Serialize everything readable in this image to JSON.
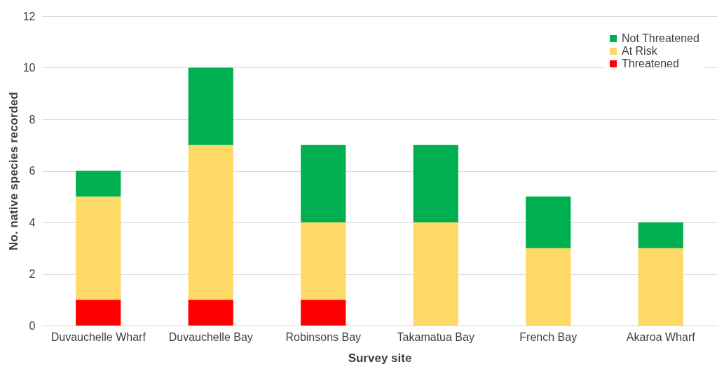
{
  "chart_data": {
    "type": "bar",
    "stacked": true,
    "xlabel": "Survey site",
    "ylabel": "No. native species recorded",
    "categories": [
      "Duvauchelle Wharf",
      "Duvauchelle Bay",
      "Robinsons Bay",
      "Takamatua Bay",
      "French Bay",
      "Akaroa Wharf"
    ],
    "series": [
      {
        "name": "Threatened",
        "color": "#ff0000",
        "values": [
          1,
          1,
          1,
          0,
          0,
          0
        ]
      },
      {
        "name": "At Risk",
        "color": "#ffd966",
        "values": [
          4,
          6,
          3,
          4,
          3,
          3
        ]
      },
      {
        "name": "Not Threatened",
        "color": "#00b050",
        "values": [
          1,
          3,
          3,
          3,
          2,
          1
        ]
      }
    ],
    "ylim": [
      0,
      12
    ],
    "yticks": [
      0,
      2,
      4,
      6,
      8,
      10,
      12
    ],
    "grid": "y",
    "legend": "top right"
  }
}
